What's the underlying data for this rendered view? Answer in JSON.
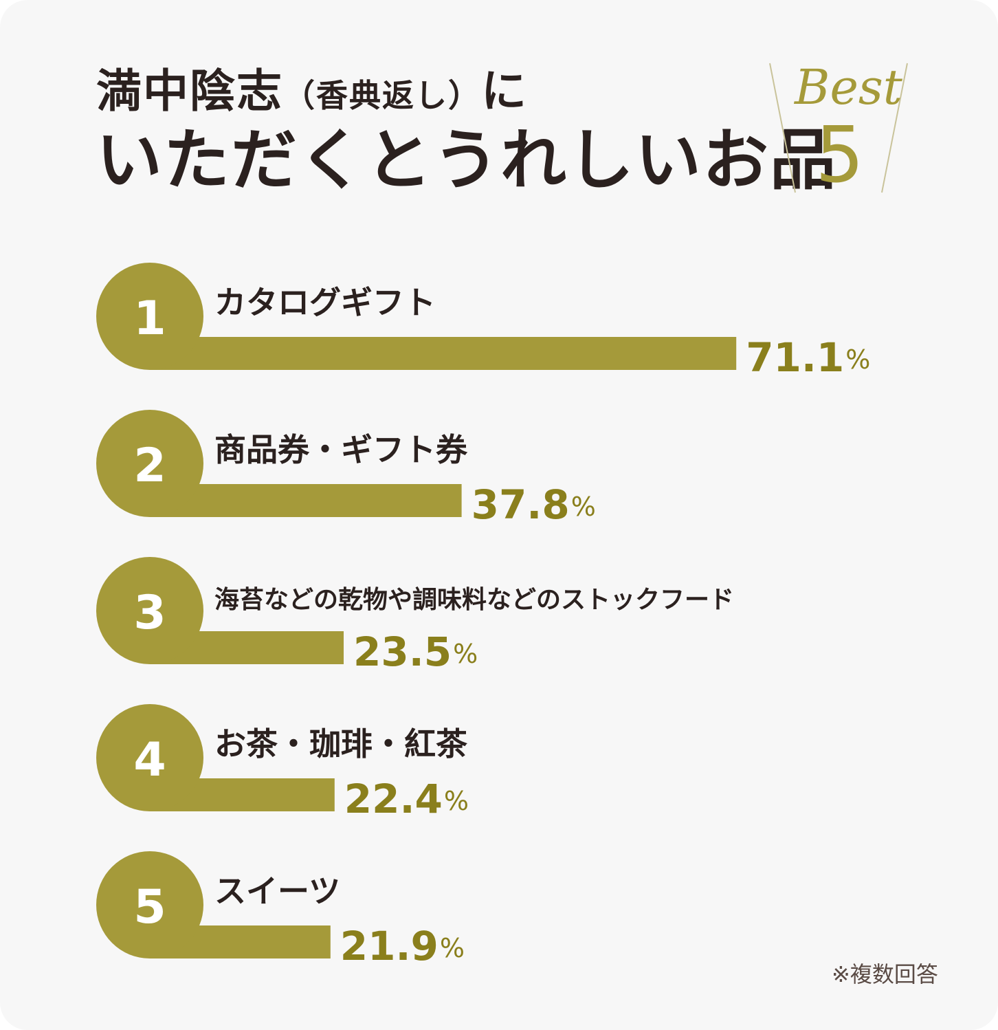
{
  "title": {
    "line1_main": "満中陰志",
    "line1_paren": "（香典返し）",
    "line1_tail": "に",
    "line2": "いただくとうれしいお品"
  },
  "badge": {
    "word": "Best",
    "number": "5"
  },
  "chart_data": {
    "type": "bar",
    "orientation": "horizontal",
    "categories": [
      "カタログギフト",
      "商品券・ギフト券",
      "海苔などの乾物や調味料などのストックフード",
      "お茶・珈琲・紅茶",
      "スイーツ"
    ],
    "ranks": [
      "1",
      "2",
      "3",
      "4",
      "5"
    ],
    "values": [
      71.1,
      37.8,
      23.5,
      22.4,
      21.9
    ],
    "value_labels": [
      "71.1",
      "37.8",
      "23.5",
      "22.4",
      "21.9"
    ],
    "unit": "%"
  },
  "colors": {
    "bar": "#a59a3a",
    "value_text": "#8a7f1c",
    "title_text": "#2b211f",
    "background": "#f7f7f7"
  },
  "footnote": "※複数回答"
}
